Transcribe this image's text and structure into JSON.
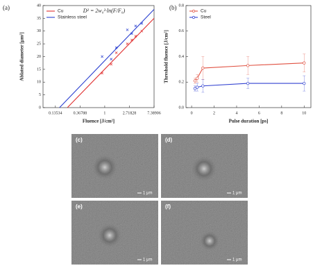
{
  "chart_data": [
    {
      "type": "scatter",
      "panel": "(a)",
      "annotation": "D² = 2w₀²·ln(F/F₀)",
      "x_label": "Fluence [J/cm²]",
      "y_label": "Ablated diameter [μm²]",
      "xscale": "log",
      "xlim": [
        0.082,
        7.38906
      ],
      "xticks": [
        0.13534,
        0.36788,
        1,
        2.71828,
        7.38906
      ],
      "ylim": [
        0,
        40
      ],
      "yticks": [
        0,
        5,
        10,
        15,
        20,
        25,
        30,
        35,
        40
      ],
      "legend": "upper left",
      "series": [
        {
          "name": "Cu",
          "color": "#e03030",
          "x": [
            0.9,
            1.3,
            1.6,
            2.5,
            3.0,
            3.5,
            4.5
          ],
          "values": [
            13.5,
            17,
            21.5,
            25,
            26.5,
            28,
            30
          ],
          "fit_x": [
            0.22,
            7.38906
          ],
          "fit_values": [
            0,
            35
          ]
        },
        {
          "name": "Stainless steel",
          "color": "#2a3fd0",
          "x": [
            0.9,
            1.3,
            1.6,
            2.5,
            3.0,
            3.5,
            4.5
          ],
          "values": [
            20,
            19,
            23.5,
            30.5,
            29,
            32,
            33
          ],
          "fit_x": [
            0.16,
            7.38906
          ],
          "fit_values": [
            0,
            38.5
          ]
        }
      ]
    },
    {
      "type": "line",
      "panel": "(b)",
      "x_label": "Pulse duration [ps]",
      "y_label": "Threshold fluence [J/cm²]",
      "xlim": [
        -0.5,
        10.6
      ],
      "xticks": [
        0,
        2,
        4,
        6,
        8,
        10
      ],
      "ylim": [
        0,
        0.8
      ],
      "yticks": [
        {
          "value": 0,
          "label": "0.0"
        },
        0.2,
        0.4,
        0.6,
        0.8
      ],
      "legend": "upper left",
      "series": [
        {
          "name": "Cu",
          "color": "#e05040",
          "x": [
            0.3,
            0.5,
            1,
            5,
            10
          ],
          "values": [
            0.21,
            0.23,
            0.31,
            0.33,
            0.35
          ],
          "errors": [
            0.02,
            0.03,
            0.09,
            0.07,
            0.07
          ]
        },
        {
          "name": "Steel",
          "color": "#3040d0",
          "x": [
            0.3,
            0.5,
            1,
            5,
            10
          ],
          "values": [
            0.15,
            0.16,
            0.17,
            0.19,
            0.19
          ],
          "errors": [
            0.02,
            0.03,
            0.05,
            0.04,
            0.06
          ]
        }
      ]
    }
  ],
  "images": [
    {
      "label": "(c)",
      "scale": "1 μm"
    },
    {
      "label": "(d)",
      "scale": "1 μm"
    },
    {
      "label": "(e)",
      "scale": "1 μm"
    },
    {
      "label": "(f)",
      "scale": "1 μm"
    }
  ]
}
